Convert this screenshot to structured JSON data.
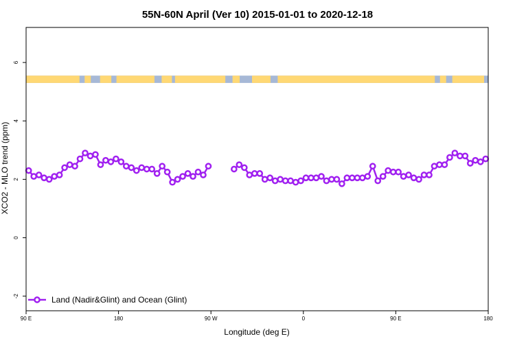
{
  "chart_data": {
    "type": "line",
    "title": "55N-60N April (Ver 10)   2015-01-01 to 2020-12-18",
    "xlabel": "Longitude (deg E)",
    "ylabel": "XCO2 - MLO trend (ppm)",
    "xlim": [
      90,
      450
    ],
    "ylim": [
      -2.5,
      7.2
    ],
    "x_ticks": [
      {
        "value": 90,
        "label": "90 E"
      },
      {
        "value": 180,
        "label": "180"
      },
      {
        "value": 270,
        "label": "90 W"
      },
      {
        "value": 360,
        "label": "0"
      },
      {
        "value": 450,
        "label": "90 E"
      },
      {
        "value": 540,
        "label": "180"
      }
    ],
    "y_ticks": [
      {
        "value": -2,
        "label": "-2"
      },
      {
        "value": 0,
        "label": "0"
      },
      {
        "value": 2,
        "label": "2"
      },
      {
        "value": 4,
        "label": "4"
      },
      {
        "value": 6,
        "label": "6"
      }
    ],
    "legend": {
      "position": "bottom-left",
      "label": "Land (Nadir&Glint) and Ocean (Glint)"
    },
    "series": [
      {
        "name": "Land (Nadir&Glint) and Ocean (Glint)",
        "color": "#a020f0",
        "segments": [
          {
            "x": [
              92.5,
              97.5,
              102.5,
              107.5,
              112.5,
              117.5,
              122.5,
              127.5,
              132.5,
              137.5,
              142.5,
              147.5,
              152.5,
              157.5,
              162.5,
              167.5,
              172.5,
              177.5,
              182.5,
              187.5,
              192.5,
              197.5,
              202.5,
              207.5,
              212.5,
              217.5,
              222.5,
              227.5,
              232.5,
              237.5,
              242.5,
              247.5,
              252.5,
              257.5,
              262.5,
              267.5
            ],
            "y": [
              2.3,
              2.1,
              2.15,
              2.05,
              2.0,
              2.1,
              2.15,
              2.4,
              2.5,
              2.45,
              2.7,
              2.9,
              2.8,
              2.85,
              2.5,
              2.65,
              2.6,
              2.7,
              2.6,
              2.45,
              2.4,
              2.3,
              2.4,
              2.35,
              2.35,
              2.2,
              2.45,
              2.25,
              1.9,
              2.0,
              2.1,
              2.2,
              2.1,
              2.25,
              2.15,
              2.45
            ]
          },
          {
            "x": [
              292.5,
              297.5,
              302.5,
              307.5,
              312.5,
              317.5,
              322.5,
              327.5,
              332.5,
              337.5,
              342.5,
              347.5,
              352.5,
              357.5,
              362.5,
              367.5,
              372.5,
              377.5,
              382.5,
              387.5,
              392.5,
              397.5,
              402.5,
              407.5,
              412.5,
              417.5,
              422.5,
              427.5,
              432.5,
              437.5,
              442.5,
              447.5,
              452.5,
              457.5,
              462.5,
              467.5,
              472.5,
              477.5,
              482.5,
              487.5,
              492.5,
              497.5,
              502.5,
              507.5,
              512.5,
              517.5,
              522.5,
              527.5,
              532.5,
              537.5
            ],
            "y": [
              2.35,
              2.5,
              2.4,
              2.15,
              2.2,
              2.2,
              2.0,
              2.05,
              1.95,
              2.0,
              1.95,
              1.95,
              1.9,
              1.95,
              2.05,
              2.05,
              2.05,
              2.1,
              1.95,
              2.0,
              2.0,
              1.85,
              2.05,
              2.05,
              2.05,
              2.05,
              2.1,
              2.45,
              1.95,
              2.1,
              2.3,
              2.25,
              2.25,
              2.1,
              2.15,
              2.05,
              2.0,
              2.15,
              2.15,
              2.45,
              2.5,
              2.5,
              2.75,
              2.9,
              2.8,
              2.8,
              2.55,
              2.65,
              2.6,
              2.7
            ]
          }
        ]
      }
    ],
    "land_ocean_strip": {
      "y_range": [
        5.3,
        5.55
      ],
      "ocean_color": "#a6b8d6",
      "land_color": "#ffd874",
      "land_segments": [
        [
          90,
          142
        ],
        [
          147,
          153
        ],
        [
          162,
          173
        ],
        [
          178,
          215
        ],
        [
          222,
          232
        ],
        [
          235,
          284
        ],
        [
          291,
          298
        ],
        [
          310,
          328
        ],
        [
          335,
          488
        ],
        [
          493,
          499
        ],
        [
          505,
          536
        ]
      ]
    }
  }
}
